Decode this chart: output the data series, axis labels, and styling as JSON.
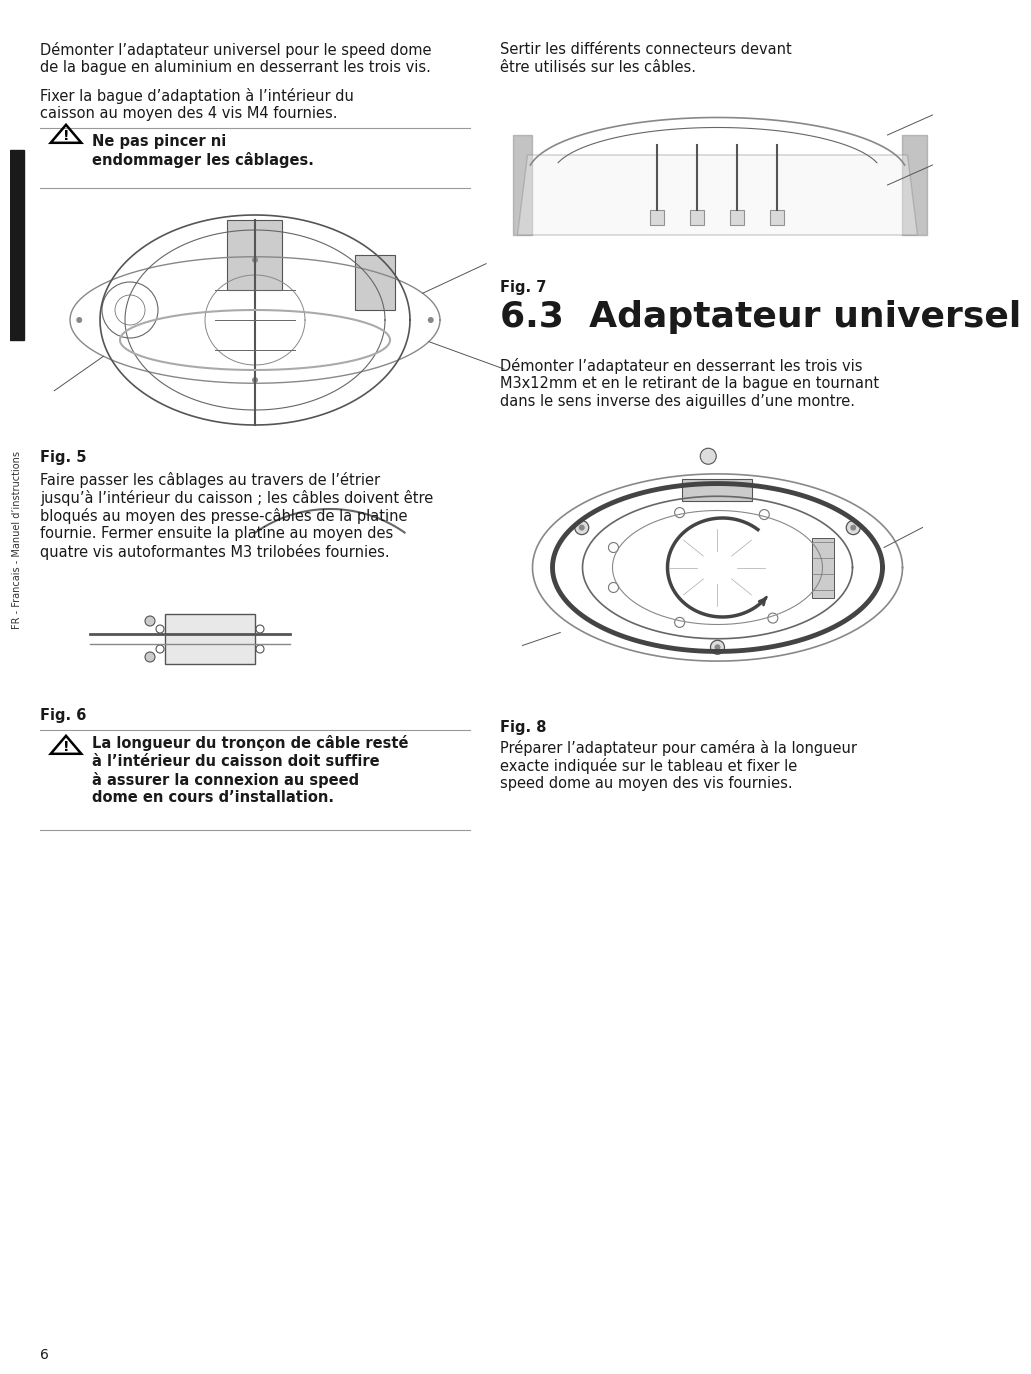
{
  "page_bg": "#ffffff",
  "page_number": "6",
  "left_col": {
    "para1_line1": "Démonter l’adaptateur universel pour le speed dome",
    "para1_line2": "de la bague en aluminium en desserrant les trois vis.",
    "para2_line1": "Fixer la bague d’adaptation à l’intérieur du",
    "para2_line2": "caisson au moyen des 4 vis M4 fournies.",
    "warning1_bold_line1": "Ne pas pincer ni",
    "warning1_bold_line2": "endommager les câblages.",
    "fig5_label": "Fig. 5",
    "para3_line1": "Faire passer les câblages au travers de l’étrier",
    "para3_line2": "jusqu’à l’intérieur du caisson ; les câbles doivent être",
    "para3_line3": "bloqués au moyen des presse-câbles de la platine",
    "para3_line4": "fournie. Fermer ensuite la platine au moyen des",
    "para3_line5": "quatre vis autoformantes M3 trilobées fournies.",
    "fig6_label": "Fig. 6",
    "warning2_bold_line1": "La longueur du tronçon de câble resté",
    "warning2_bold_line2": "à l’intérieur du caisson doit suffire",
    "warning2_bold_line3": "à assurer la connexion au speed",
    "warning2_bold_line4": "dome en cours d’installation."
  },
  "right_col": {
    "para1_line1": "Sertir les différents connecteurs devant",
    "para1_line2": "être utilisés sur les câbles.",
    "fig7_label": "Fig. 7",
    "section_heading": "6.3  Adaptateur universel",
    "para2_line1": "Démonter l’adaptateur en desserrant les trois vis",
    "para2_line2": "M3x12mm et en le retirant de la bague en tournant",
    "para2_line3": "dans le sens inverse des aiguilles d’une montre.",
    "fig8_label": "Fig. 8",
    "para3_line1": "Préparer l’adaptateur pour caméra à la longueur",
    "para3_line2": "exacte indiquée sur le tableau et fixer le",
    "para3_line3": "speed dome au moyen des vis fournies."
  },
  "sidebar_text": "FR - Francais - Manuel d’instructions",
  "body_fontsize": 10.5,
  "bold_fontsize": 10.5,
  "section_heading_fontsize": 26,
  "fig_label_fontsize": 10.5,
  "page_num_fontsize": 10,
  "sidebar_bg": "#1a1a1a",
  "text_color": "#1a1a1a",
  "line_color": "#999999"
}
